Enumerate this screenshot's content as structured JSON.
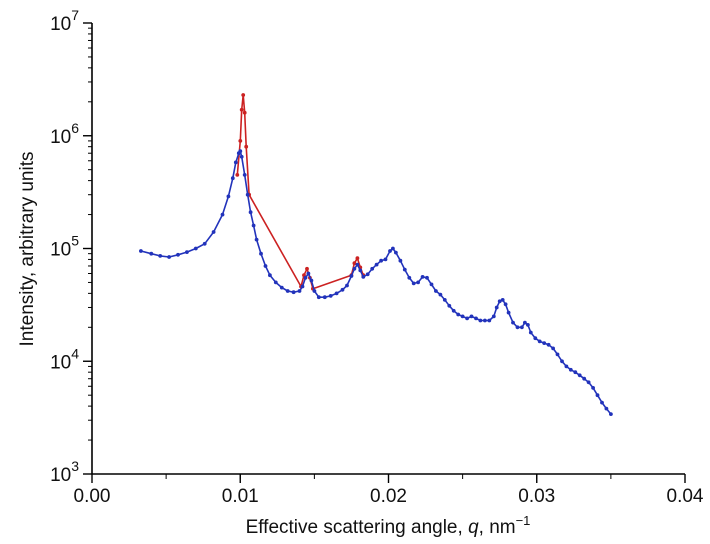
{
  "chart_data": {
    "type": "line",
    "xlabel_main": "Effective scattering angle, ",
    "xlabel_var": "q",
    "xlabel_unit": ", nm",
    "xlabel_unit_exp": "−1",
    "ylabel": "Intensity, arbitrary units",
    "xlim": [
      0,
      0.04
    ],
    "ylim": [
      1000,
      10000000
    ],
    "yscale": "log",
    "grid": false,
    "x_ticks": [
      0.0,
      0.01,
      0.02,
      0.03,
      0.04
    ],
    "x_tick_labels": [
      "0.00",
      "0.01",
      "0.02",
      "0.03",
      "0.04"
    ],
    "y_ticks": [
      1000,
      10000,
      100000,
      1000000,
      10000000
    ],
    "y_tick_labels": [
      {
        "base": "10",
        "exp": "3"
      },
      {
        "base": "10",
        "exp": "4"
      },
      {
        "base": "10",
        "exp": "5"
      },
      {
        "base": "10",
        "exp": "6"
      },
      {
        "base": "10",
        "exp": "7"
      }
    ],
    "series": [
      {
        "color": "#cc2222",
        "x": [
          0.0098,
          0.01,
          0.0101,
          0.0102,
          0.0103,
          0.0104,
          0.0106,
          0.0141,
          0.0143,
          0.0145,
          0.0147,
          0.0149,
          0.0175,
          0.0177,
          0.0179,
          0.0181,
          0.0183
        ],
        "y": [
          450000,
          900000,
          1700000,
          2300000,
          1600000,
          800000,
          300000,
          46000,
          58000,
          66000,
          55000,
          44000,
          58000,
          74000,
          82000,
          68000,
          58000
        ]
      },
      {
        "color": "#2233bb",
        "x": [
          0.0033,
          0.004,
          0.0046,
          0.0052,
          0.0058,
          0.0064,
          0.007,
          0.0076,
          0.0082,
          0.0088,
          0.0092,
          0.0095,
          0.0097,
          0.0099,
          0.01,
          0.0101,
          0.0103,
          0.0105,
          0.0107,
          0.0109,
          0.0111,
          0.0114,
          0.0117,
          0.012,
          0.0124,
          0.0128,
          0.0132,
          0.0136,
          0.014,
          0.0142,
          0.0144,
          0.0146,
          0.0148,
          0.015,
          0.0153,
          0.0157,
          0.0161,
          0.0165,
          0.0169,
          0.0172,
          0.0175,
          0.0177,
          0.0179,
          0.0181,
          0.0183,
          0.0186,
          0.0189,
          0.0192,
          0.0195,
          0.0198,
          0.0201,
          0.0203,
          0.0205,
          0.0208,
          0.0211,
          0.0214,
          0.0217,
          0.022,
          0.0223,
          0.0226,
          0.0229,
          0.0232,
          0.0235,
          0.0238,
          0.0241,
          0.0244,
          0.0247,
          0.025,
          0.0253,
          0.0256,
          0.0259,
          0.0262,
          0.0265,
          0.0268,
          0.0271,
          0.0273,
          0.0275,
          0.0277,
          0.0279,
          0.0281,
          0.0284,
          0.0287,
          0.029,
          0.0292,
          0.0294,
          0.0296,
          0.0299,
          0.0302,
          0.0305,
          0.0308,
          0.0311,
          0.0314,
          0.0317,
          0.032,
          0.0323,
          0.0326,
          0.0329,
          0.0332,
          0.0335,
          0.0338,
          0.0341,
          0.0344,
          0.0347,
          0.035
        ],
        "y": [
          95000,
          90000,
          86000,
          84000,
          88000,
          93000,
          100000,
          110000,
          140000,
          200000,
          290000,
          420000,
          580000,
          700000,
          730000,
          650000,
          450000,
          300000,
          210000,
          160000,
          120000,
          90000,
          70000,
          58000,
          50000,
          45000,
          42000,
          41000,
          42000,
          46000,
          55000,
          60000,
          52000,
          42000,
          37000,
          37000,
          38000,
          40000,
          43000,
          47000,
          57000,
          66000,
          72000,
          64000,
          56000,
          59000,
          66000,
          72000,
          78000,
          80000,
          95000,
          100000,
          92000,
          78000,
          65000,
          55000,
          49000,
          50000,
          56000,
          55000,
          48000,
          42000,
          39000,
          35000,
          31000,
          28000,
          26000,
          25000,
          24000,
          25000,
          24000,
          23000,
          23000,
          23000,
          25000,
          30000,
          34000,
          35000,
          32000,
          27000,
          22000,
          20000,
          20000,
          22000,
          21000,
          18000,
          16000,
          15000,
          14500,
          14000,
          13000,
          11500,
          10000,
          9000,
          8400,
          8000,
          7500,
          7000,
          6500,
          5800,
          5000,
          4300,
          3800,
          3400
        ]
      }
    ]
  }
}
